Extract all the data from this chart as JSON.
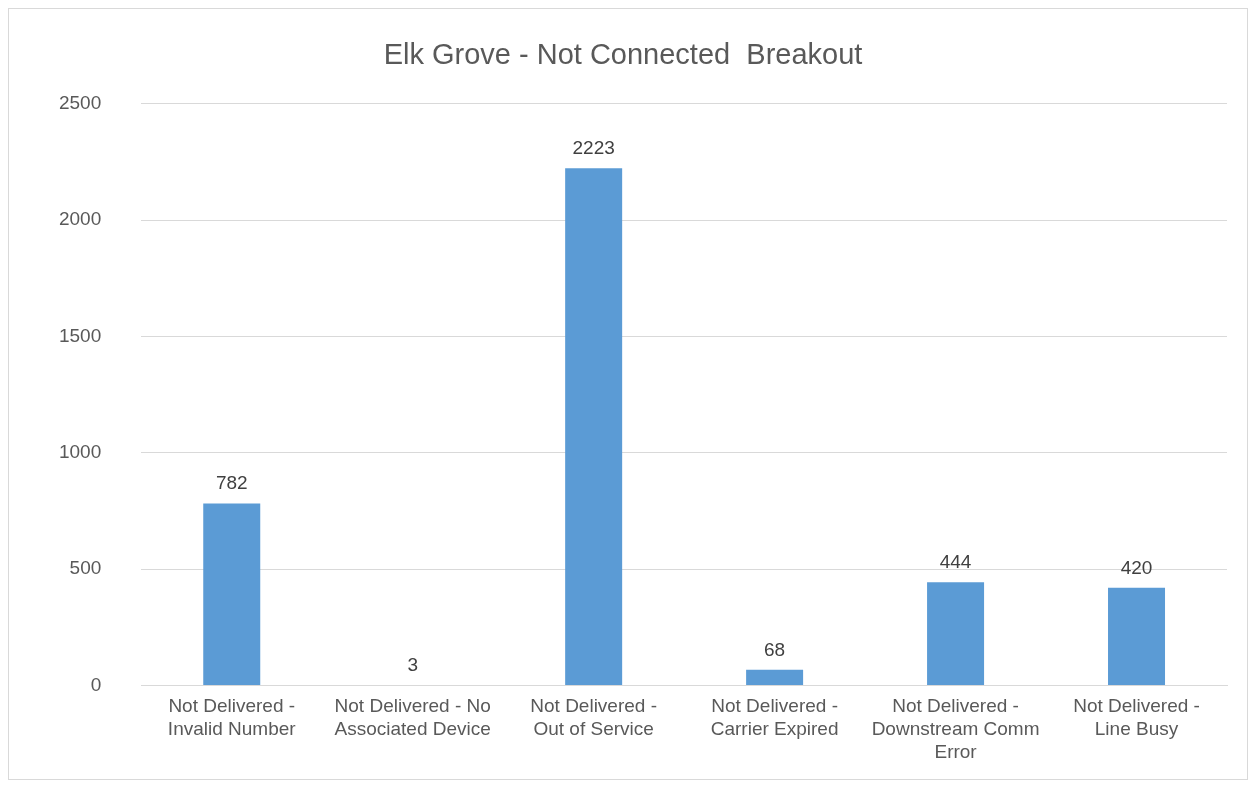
{
  "chart_data": {
    "type": "bar",
    "title": "Elk Grove - Not Connected  Breakout",
    "categories": [
      "Not Delivered - Invalid Number",
      "Not Delivered - No Associated Device",
      "Not Delivered - Out of Service",
      "Not Delivered - Carrier Expired",
      "Not Delivered - Downstream Comm Error",
      "Not Delivered - Line Busy"
    ],
    "values": [
      782,
      3,
      2223,
      68,
      444,
      420
    ],
    "color": "#5b9bd5",
    "ylim": [
      0,
      2500
    ],
    "yticks": [
      0,
      500,
      1000,
      1500,
      2000,
      2500
    ],
    "grid": "y",
    "data_labels": true,
    "legend": false
  }
}
